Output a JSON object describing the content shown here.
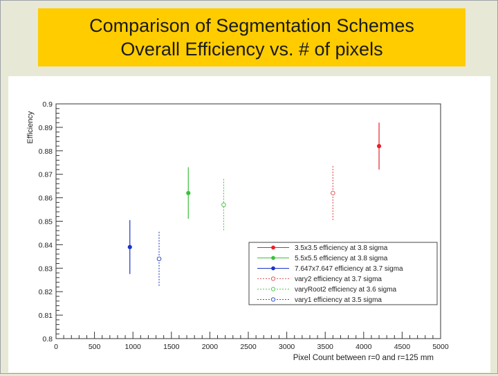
{
  "slide": {
    "title_line1": "Comparison of Segmentation Schemes",
    "title_line2": "Overall Efficiency vs. # of pixels"
  },
  "colors": {
    "title_bg": "#ffcc00",
    "background": "#e8e8d6",
    "red": "#e8202a",
    "green": "#3cbf3c",
    "blue": "#1a33c8",
    "red_light": "#e05858",
    "green_light": "#55c855",
    "blue_light": "#3a4fc8"
  },
  "chart_data": {
    "type": "scatter",
    "xlabel": "Pixel Count between r=0 and r=125 mm",
    "ylabel": "Efficiency",
    "xlim": [
      0,
      5000
    ],
    "ylim": [
      0.8,
      0.9
    ],
    "x_ticks": [
      0,
      500,
      1000,
      1500,
      2000,
      2500,
      3000,
      3500,
      4000,
      4500,
      5000
    ],
    "x_tick_labels": [
      "0",
      "500",
      "1000",
      "1500",
      "2000",
      "2500",
      "3000",
      "3500",
      "4000",
      "4500",
      "5000"
    ],
    "y_ticks": [
      0.8,
      0.81,
      0.82,
      0.83,
      0.84,
      0.85,
      0.86,
      0.87,
      0.88,
      0.89,
      0.9
    ],
    "y_tick_labels": [
      "0.8",
      "0.81",
      "0.82",
      "0.83",
      "0.84",
      "0.85",
      "0.86",
      "0.87",
      "0.88",
      "0.89",
      "0.9"
    ],
    "grid": false,
    "legend_position": "bottom-right",
    "series": [
      {
        "name": "3.5x3.5 efficiency at 3.8 sigma",
        "x": 4200,
        "y": 0.882,
        "err": 0.01,
        "marker": "filled",
        "line": "solid",
        "color": "#e8202a"
      },
      {
        "name": "5.5x5.5 efficiency at 3.8 sigma",
        "x": 1720,
        "y": 0.862,
        "err": 0.011,
        "marker": "filled",
        "line": "solid",
        "color": "#3cbf3c"
      },
      {
        "name": "7.647x7.647 efficiency at 3.7 sigma",
        "x": 960,
        "y": 0.839,
        "err": 0.0115,
        "marker": "filled",
        "line": "solid",
        "color": "#1a33c8"
      },
      {
        "name": "vary2 efficiency at 3.7 sigma",
        "x": 3600,
        "y": 0.862,
        "err": 0.0115,
        "marker": "open",
        "line": "dotted",
        "color": "#e05858"
      },
      {
        "name": "varyRoot2 efficiency at 3.6 sigma",
        "x": 2180,
        "y": 0.857,
        "err": 0.011,
        "marker": "open",
        "line": "dotted",
        "color": "#55c855"
      },
      {
        "name": "vary1 efficiency at 3.5 sigma",
        "x": 1340,
        "y": 0.834,
        "err": 0.0115,
        "marker": "open",
        "line": "dotted",
        "color": "#3a4fc8"
      }
    ]
  }
}
